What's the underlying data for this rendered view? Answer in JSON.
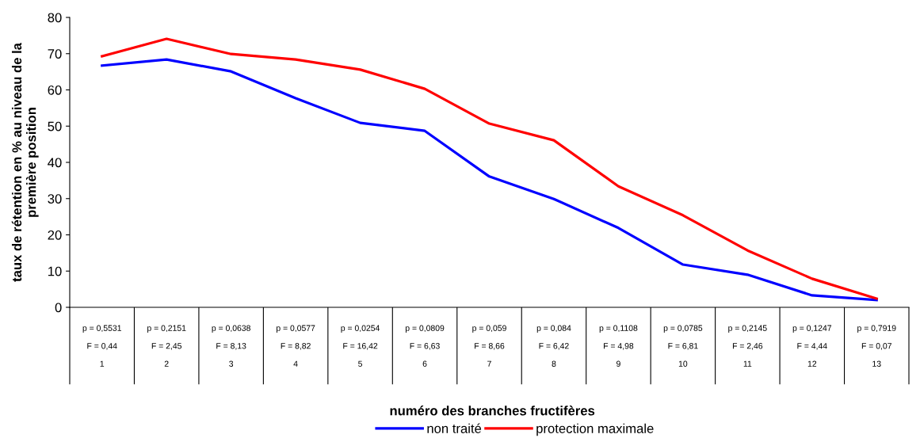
{
  "chart_data": {
    "type": "line",
    "annotations": [
      "numéro des branches fructifères"
    ],
    "ylabel": "taux de rétention en % au niveau de la\npremière position",
    "categories": [
      "p = 0,5531\nF = 0,44\n1",
      "p = 0,2151\nF = 2,45\n2",
      "p = 0,0638\nF = 8,13\n3",
      "p = 0,0577\nF = 8,82\n4",
      "p = 0,0254\nF = 16,42\n5",
      "p = 0,0809\nF = 6,63\n6",
      "p = 0,059\nF = 8,66\n7",
      "p = 0,084\nF = 6,42\n8",
      "p = 0,1108\nF = 4,98\n9",
      "p = 0,0785\nF = 6,81\n10",
      "p = 0,2145\nF = 2,46\n11",
      "p = 0,1247\nF = 4,44\n12",
      "p = 0,7919\nF = 0,07\n13"
    ],
    "series": [
      {
        "name": "non traité",
        "color": "#0000ff",
        "values": [
          66.7,
          68.4,
          65.1,
          57.7,
          50.9,
          48.7,
          36.1,
          29.9,
          21.9,
          11.8,
          9.0,
          3.3,
          2.0
        ]
      },
      {
        "name": "protection maximale",
        "color": "#ff0000",
        "values": [
          69.3,
          74.1,
          69.9,
          68.4,
          65.6,
          60.3,
          50.7,
          46.1,
          33.4,
          25.4,
          15.7,
          7.9,
          2.4
        ]
      }
    ],
    "ylim": [
      0,
      80
    ],
    "yticks": [
      0,
      10,
      20,
      30,
      40,
      50,
      60,
      70,
      80
    ],
    "grid": false,
    "legend": "bottom",
    "marker": "none",
    "line_style": "solid"
  }
}
